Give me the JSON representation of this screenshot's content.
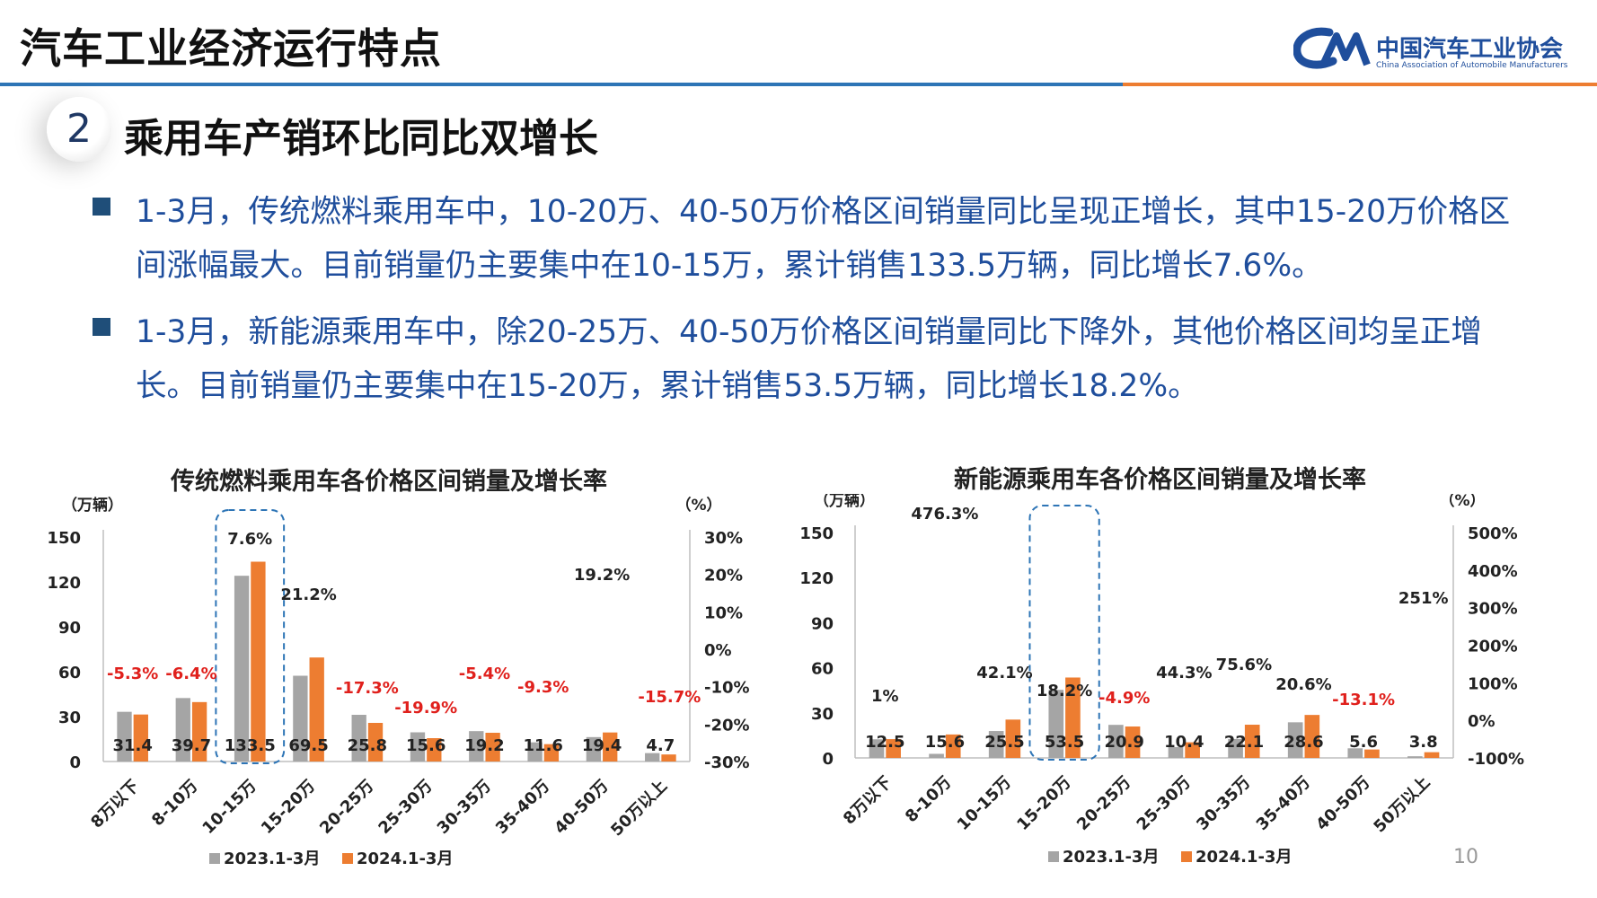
{
  "header": {
    "title": "汽车工业经济运行特点",
    "logo_cn": "中国汽车工业协会",
    "logo_en": "China Association of Automobile Manufacturers"
  },
  "section": {
    "number": "2",
    "title": "乘用车产销环比同比双增长"
  },
  "bullets": [
    "1-3月，传统燃料乘用车中，10-20万、40-50万价格区间销量同比呈现正增长，其中15-20万价格区间涨幅最大。目前销量仍主要集中在10-15万，累计销售133.5万辆，同比增长7.6%。",
    "1-3月，新能源乘用车中，除20-25万、40-50万价格区间销量同比下降外，其他价格区间均呈正增长。目前销量仍主要集中在15-20万，累计销售53.5万辆，同比增长18.2%。"
  ],
  "colors": {
    "series_2023": "#a5a5a5",
    "series_2024": "#ed7d31",
    "negative": "#e0201c",
    "highlight": "#2e75b6"
  },
  "page_number": "10",
  "chart_data": [
    {
      "type": "bar",
      "title": "传统燃料乘用车各价格区间销量及增长率",
      "ylabel_left": "（万辆）",
      "ylabel_right": "（%）",
      "categories": [
        "8万以下",
        "8-10万",
        "10-15万",
        "15-20万",
        "20-25万",
        "25-30万",
        "30-35万",
        "35-40万",
        "40-50万",
        "50万以上"
      ],
      "series": [
        {
          "name": "2023.1-3月",
          "values": [
            33.2,
            42.4,
            124.1,
            57.3,
            31.2,
            19.5,
            20.3,
            12.8,
            16.3,
            5.6
          ]
        },
        {
          "name": "2024.1-3月",
          "values": [
            31.4,
            39.7,
            133.5,
            69.5,
            25.8,
            15.6,
            19.2,
            11.6,
            19.4,
            4.7
          ]
        }
      ],
      "data_labels": [
        "31.4",
        "39.7",
        "133.5",
        "69.5",
        "25.8",
        "15.6",
        "19.2",
        "11.6",
        "19.4",
        "4.7"
      ],
      "growth_labels": [
        "-5.3%",
        "-6.4%",
        "7.6%",
        "21.2%",
        "-17.3%",
        "-19.9%",
        "-5.4%",
        "-9.3%",
        "19.2%",
        "-15.7%"
      ],
      "growth_values": [
        -5.3,
        -6.4,
        7.6,
        21.2,
        -17.3,
        -19.9,
        -5.4,
        -9.3,
        19.2,
        -15.7
      ],
      "ylim": [
        0,
        150
      ],
      "yticks": [
        "0",
        "30",
        "60",
        "90",
        "120",
        "150"
      ],
      "y2lim": [
        -30,
        30
      ],
      "y2ticks": [
        "-30%",
        "-20%",
        "-10%",
        "0%",
        "10%",
        "20%",
        "30%"
      ],
      "highlight_category": "10-15万",
      "legend_position": "bottom-left"
    },
    {
      "type": "bar",
      "title": "新能源乘用车各价格区间销量及增长率",
      "ylabel_left": "（万辆）",
      "ylabel_right": "（%）",
      "categories": [
        "8万以下",
        "8-10万",
        "10-15万",
        "15-20万",
        "20-25万",
        "25-30万",
        "30-35万",
        "35-40万",
        "40-50万",
        "50万以上"
      ],
      "series": [
        {
          "name": "2023.1-3月",
          "values": [
            12.4,
            2.7,
            17.9,
            45.3,
            22.0,
            7.2,
            12.6,
            23.7,
            6.4,
            1.1
          ]
        },
        {
          "name": "2024.1-3月",
          "values": [
            12.5,
            15.6,
            25.5,
            53.5,
            20.9,
            10.4,
            22.1,
            28.6,
            5.6,
            3.8
          ]
        }
      ],
      "data_labels": [
        "12.5",
        "15.6",
        "25.5",
        "53.5",
        "20.9",
        "10.4",
        "22.1",
        "28.6",
        "5.6",
        "3.8"
      ],
      "growth_labels": [
        "1%",
        "476.3%",
        "42.1%",
        "18.2%",
        "-4.9%",
        "44.3%",
        "75.6%",
        "20.6%",
        "-13.1%",
        "251%"
      ],
      "growth_values": [
        1,
        476.3,
        42.1,
        18.2,
        -4.9,
        44.3,
        75.6,
        20.6,
        -13.1,
        251
      ],
      "ylim": [
        0,
        150
      ],
      "yticks": [
        "0",
        "30",
        "60",
        "90",
        "120",
        "150"
      ],
      "y2lim": [
        -100,
        500
      ],
      "y2ticks": [
        "-100%",
        "0%",
        "100%",
        "200%",
        "300%",
        "400%",
        "500%"
      ],
      "highlight_category": "15-20万",
      "legend_position": "bottom-left"
    }
  ]
}
